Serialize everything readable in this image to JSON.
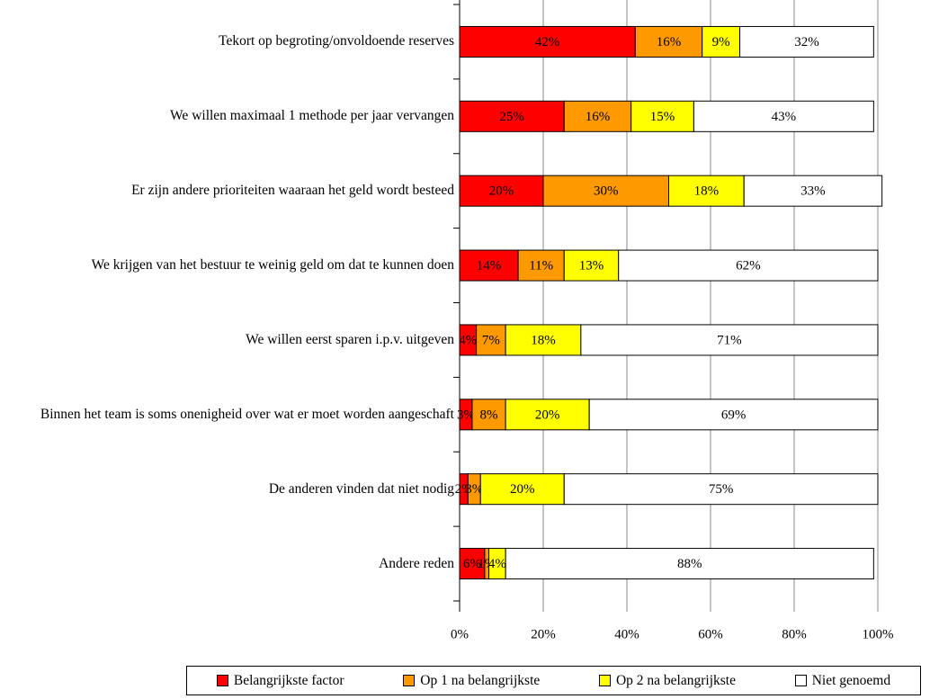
{
  "chart_data": {
    "type": "stacked_barh",
    "categories": [
      "Tekort op begroting/onvoldoende reserves",
      "We willen maximaal 1 methode per jaar vervangen",
      "Er zijn andere prioriteiten waaraan het geld wordt besteed",
      "We krijgen van het bestuur te weinig geld om dat te kunnen doen",
      "We willen eerst sparen i.p.v. uitgeven",
      "Binnen het team is soms onenigheid over wat er moet worden aangeschaft",
      "De anderen vinden dat niet nodig",
      "Andere reden"
    ],
    "series": [
      {
        "name": "Belangrijkste factor",
        "color": "#ff0000",
        "values": [
          42,
          25,
          20,
          14,
          4,
          3,
          2,
          6
        ],
        "value_labels": [
          "42%",
          "25%",
          "20%",
          "14%",
          "4%",
          "3%",
          "2%",
          "6%"
        ]
      },
      {
        "name": "Op 1 na belangrijkste",
        "color": "#ff9900",
        "values": [
          16,
          16,
          30,
          11,
          7,
          8,
          3,
          1
        ],
        "value_labels": [
          "16%",
          "16%",
          "30%",
          "11%",
          "7%",
          "8%",
          "3%",
          "1%"
        ]
      },
      {
        "name": "Op 2 na belangrijkste",
        "color": "#ffff00",
        "values": [
          9,
          15,
          18,
          13,
          18,
          20,
          20,
          4
        ],
        "value_labels": [
          "9%",
          "15%",
          "18%",
          "13%",
          "18%",
          "20%",
          "20%",
          "4%"
        ]
      },
      {
        "name": "Niet genoemd",
        "color": "#ffffff",
        "values": [
          32,
          43,
          33,
          62,
          71,
          69,
          75,
          88
        ],
        "value_labels": [
          "32%",
          "43%",
          "33%",
          "62%",
          "71%",
          "69%",
          "75%",
          "88%"
        ]
      }
    ],
    "xlim": [
      0,
      100
    ],
    "xticks": [
      {
        "value": 0,
        "label": "0%"
      },
      {
        "value": 20,
        "label": "20%"
      },
      {
        "value": 40,
        "label": "40%"
      },
      {
        "value": 60,
        "label": "60%"
      },
      {
        "value": 80,
        "label": "80%"
      },
      {
        "value": 100,
        "label": "100%"
      }
    ],
    "grid": true,
    "legend": "bottom"
  }
}
